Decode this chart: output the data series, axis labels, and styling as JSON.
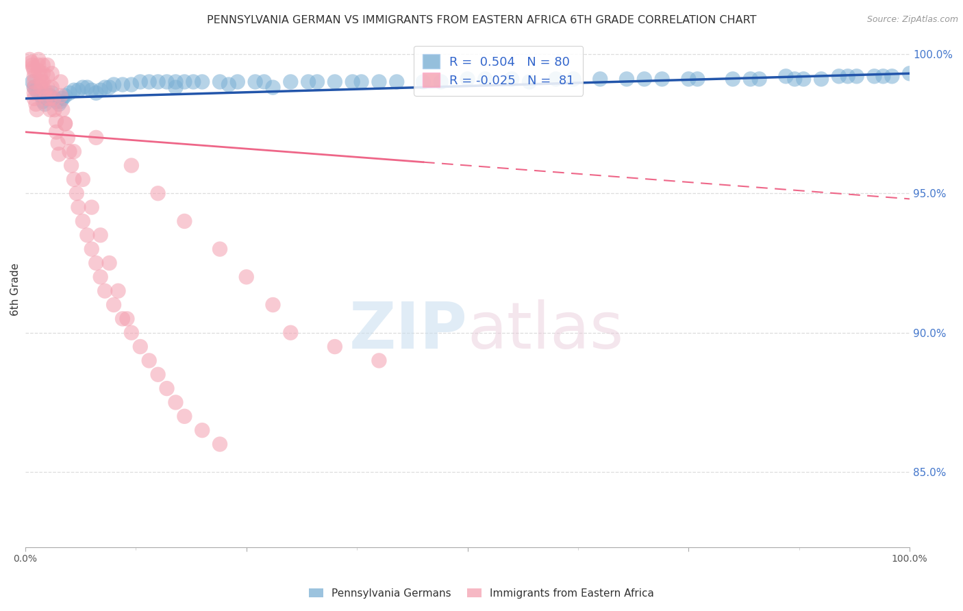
{
  "title": "PENNSYLVANIA GERMAN VS IMMIGRANTS FROM EASTERN AFRICA 6TH GRADE CORRELATION CHART",
  "source": "Source: ZipAtlas.com",
  "ylabel_left_label": "6th Grade",
  "yaxis_labels": [
    "100.0%",
    "95.0%",
    "90.0%",
    "85.0%"
  ],
  "yaxis_values": [
    1.0,
    0.95,
    0.9,
    0.85
  ],
  "xmin": 0.0,
  "xmax": 1.0,
  "ymin": 0.823,
  "ymax": 1.008,
  "legend_blue_label": "Pennsylvania Germans",
  "legend_pink_label": "Immigrants from Eastern Africa",
  "R_blue": 0.504,
  "N_blue": 80,
  "R_pink": -0.025,
  "N_pink": 81,
  "blue_color": "#7BAFD4",
  "pink_color": "#F4A0B0",
  "blue_line_color": "#2255AA",
  "pink_line_color": "#EE6688",
  "watermark_zip": "ZIP",
  "watermark_atlas": "atlas",
  "grid_color": "#DDDDDD",
  "background_color": "#FFFFFF",
  "blue_scatter_x": [
    0.008,
    0.01,
    0.012,
    0.015,
    0.018,
    0.02,
    0.022,
    0.025,
    0.028,
    0.03,
    0.032,
    0.035,
    0.038,
    0.04,
    0.042,
    0.045,
    0.05,
    0.055,
    0.06,
    0.065,
    0.07,
    0.075,
    0.08,
    0.085,
    0.09,
    0.095,
    0.1,
    0.11,
    0.12,
    0.13,
    0.14,
    0.15,
    0.16,
    0.17,
    0.18,
    0.19,
    0.2,
    0.22,
    0.24,
    0.26,
    0.28,
    0.3,
    0.32,
    0.35,
    0.38,
    0.4,
    0.45,
    0.5,
    0.55,
    0.6,
    0.65,
    0.7,
    0.75,
    0.8,
    0.83,
    0.86,
    0.88,
    0.9,
    0.92,
    0.94,
    0.96,
    0.98,
    1.0,
    0.62,
    0.68,
    0.72,
    0.76,
    0.82,
    0.87,
    0.93,
    0.97,
    0.52,
    0.57,
    0.42,
    0.47,
    0.37,
    0.33,
    0.27,
    0.23,
    0.17
  ],
  "blue_scatter_y": [
    0.99,
    0.988,
    0.987,
    0.986,
    0.985,
    0.983,
    0.982,
    0.984,
    0.985,
    0.986,
    0.984,
    0.983,
    0.982,
    0.983,
    0.984,
    0.985,
    0.986,
    0.987,
    0.987,
    0.988,
    0.988,
    0.987,
    0.986,
    0.987,
    0.988,
    0.988,
    0.989,
    0.989,
    0.989,
    0.99,
    0.99,
    0.99,
    0.99,
    0.99,
    0.99,
    0.99,
    0.99,
    0.99,
    0.99,
    0.99,
    0.988,
    0.99,
    0.99,
    0.99,
    0.99,
    0.99,
    0.99,
    0.991,
    0.991,
    0.991,
    0.991,
    0.991,
    0.991,
    0.991,
    0.991,
    0.992,
    0.991,
    0.991,
    0.992,
    0.992,
    0.992,
    0.992,
    0.993,
    0.991,
    0.991,
    0.991,
    0.991,
    0.991,
    0.991,
    0.992,
    0.992,
    0.991,
    0.99,
    0.99,
    0.99,
    0.99,
    0.99,
    0.99,
    0.989,
    0.988
  ],
  "pink_scatter_x": [
    0.005,
    0.007,
    0.008,
    0.009,
    0.01,
    0.01,
    0.01,
    0.01,
    0.01,
    0.01,
    0.012,
    0.013,
    0.015,
    0.015,
    0.015,
    0.017,
    0.018,
    0.018,
    0.02,
    0.02,
    0.02,
    0.022,
    0.023,
    0.025,
    0.025,
    0.025,
    0.027,
    0.028,
    0.03,
    0.03,
    0.032,
    0.033,
    0.035,
    0.035,
    0.037,
    0.038,
    0.04,
    0.04,
    0.042,
    0.045,
    0.048,
    0.05,
    0.052,
    0.055,
    0.058,
    0.06,
    0.065,
    0.07,
    0.075,
    0.08,
    0.085,
    0.09,
    0.1,
    0.11,
    0.12,
    0.13,
    0.14,
    0.15,
    0.16,
    0.17,
    0.18,
    0.2,
    0.22,
    0.08,
    0.12,
    0.15,
    0.18,
    0.22,
    0.25,
    0.28,
    0.3,
    0.35,
    0.4,
    0.045,
    0.055,
    0.065,
    0.075,
    0.085,
    0.095,
    0.105,
    0.115
  ],
  "pink_scatter_y": [
    0.998,
    0.997,
    0.996,
    0.995,
    0.994,
    0.992,
    0.99,
    0.988,
    0.986,
    0.984,
    0.982,
    0.98,
    0.998,
    0.996,
    0.994,
    0.992,
    0.99,
    0.988,
    0.996,
    0.993,
    0.99,
    0.987,
    0.984,
    0.996,
    0.992,
    0.988,
    0.984,
    0.98,
    0.993,
    0.988,
    0.984,
    0.98,
    0.976,
    0.972,
    0.968,
    0.964,
    0.99,
    0.985,
    0.98,
    0.975,
    0.97,
    0.965,
    0.96,
    0.955,
    0.95,
    0.945,
    0.94,
    0.935,
    0.93,
    0.925,
    0.92,
    0.915,
    0.91,
    0.905,
    0.9,
    0.895,
    0.89,
    0.885,
    0.88,
    0.875,
    0.87,
    0.865,
    0.86,
    0.97,
    0.96,
    0.95,
    0.94,
    0.93,
    0.92,
    0.91,
    0.9,
    0.895,
    0.89,
    0.975,
    0.965,
    0.955,
    0.945,
    0.935,
    0.925,
    0.915,
    0.905
  ]
}
